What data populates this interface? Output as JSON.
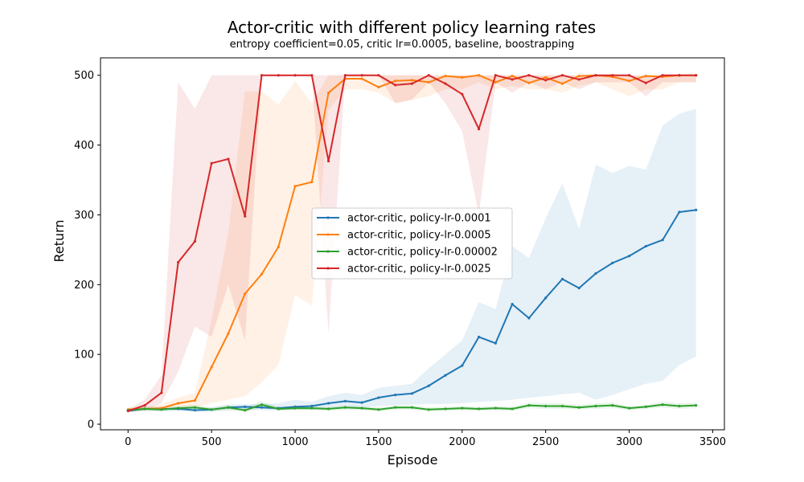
{
  "chart_data": {
    "type": "line",
    "title": "Actor-critic with different policy learning rates",
    "subtitle": "entropy coefficient=0.05, critic lr=0.0005, baseline, boostrapping",
    "xlabel": "Episode",
    "ylabel": "Return",
    "xlim": [
      -165,
      3570
    ],
    "ylim": [
      -8,
      525
    ],
    "xticks": [
      0,
      500,
      1000,
      1500,
      2000,
      2500,
      3000,
      3500
    ],
    "yticks": [
      0,
      100,
      200,
      300,
      400,
      500
    ],
    "grid": false,
    "legend_position": "center",
    "x": [
      0,
      100,
      200,
      300,
      400,
      500,
      600,
      700,
      800,
      900,
      1000,
      1100,
      1200,
      1300,
      1400,
      1500,
      1600,
      1700,
      1800,
      1900,
      2000,
      2100,
      2200,
      2300,
      2400,
      2500,
      2600,
      2700,
      2800,
      2900,
      3000,
      3100,
      3200,
      3300,
      3400
    ],
    "series": [
      {
        "name": "actor-critic, policy-lr-0.0001",
        "color": "#1f77b4",
        "values": [
          19,
          22,
          22,
          22,
          20,
          21,
          24,
          25,
          24,
          23,
          25,
          26,
          30,
          33,
          31,
          38,
          42,
          44,
          55,
          70,
          84,
          125,
          116,
          172,
          152,
          181,
          208,
          195,
          216,
          231,
          241,
          255,
          264,
          304,
          307
        ],
        "lower": [
          17,
          19,
          19,
          19,
          18,
          18,
          20,
          21,
          20,
          20,
          21,
          21,
          23,
          24,
          24,
          26,
          27,
          28,
          29,
          29,
          30,
          32,
          33,
          35,
          38,
          40,
          43,
          45,
          35,
          42,
          50,
          58,
          62,
          85,
          97
        ],
        "upper": [
          22,
          25,
          25,
          25,
          24,
          24,
          28,
          29,
          29,
          30,
          35,
          32,
          40,
          45,
          42,
          52,
          55,
          58,
          80,
          100,
          120,
          175,
          165,
          255,
          238,
          295,
          345,
          280,
          372,
          360,
          370,
          365,
          428,
          445,
          452
        ]
      },
      {
        "name": "actor-critic, policy-lr-0.0005",
        "color": "#ff7f0e",
        "values": [
          21,
          22,
          23,
          30,
          34,
          82,
          130,
          187,
          215,
          254,
          341,
          347,
          475,
          495,
          495,
          483,
          492,
          493,
          490,
          499,
          497,
          500,
          490,
          499,
          489,
          497,
          488,
          499,
          500,
          498,
          492,
          499,
          498,
          500,
          500
        ],
        "lower": [
          19,
          20,
          20,
          22,
          24,
          30,
          35,
          40,
          60,
          85,
          185,
          170,
          450,
          480,
          480,
          475,
          460,
          465,
          470,
          480,
          480,
          490,
          480,
          485,
          480,
          480,
          475,
          485,
          490,
          480,
          470,
          480,
          480,
          490,
          490
        ],
        "upper": [
          24,
          25,
          28,
          38,
          45,
          150,
          275,
          477,
          477,
          458,
          492,
          460,
          500,
          500,
          500,
          500,
          500,
          500,
          500,
          500,
          500,
          500,
          500,
          500,
          500,
          500,
          500,
          500,
          500,
          500,
          500,
          500,
          500,
          500,
          500
        ]
      },
      {
        "name": "actor-critic, policy-lr-0.00002",
        "color": "#2ca02c",
        "values": [
          20,
          22,
          21,
          23,
          24,
          21,
          24,
          20,
          28,
          22,
          23,
          23,
          22,
          24,
          23,
          21,
          24,
          24,
          21,
          22,
          23,
          22,
          23,
          22,
          27,
          26,
          26,
          24,
          26,
          27,
          23,
          25,
          28,
          26,
          27
        ],
        "lower": [
          18,
          19,
          18,
          20,
          20,
          18,
          20,
          17,
          23,
          19,
          20,
          20,
          19,
          21,
          20,
          18,
          21,
          21,
          18,
          19,
          20,
          19,
          20,
          19,
          23,
          22,
          22,
          21,
          22,
          23,
          20,
          22,
          24,
          22,
          23
        ],
        "upper": [
          23,
          25,
          24,
          26,
          28,
          24,
          28,
          24,
          33,
          25,
          26,
          26,
          25,
          27,
          26,
          24,
          27,
          27,
          24,
          25,
          26,
          25,
          26,
          25,
          31,
          30,
          30,
          28,
          30,
          31,
          26,
          28,
          32,
          30,
          31
        ]
      },
      {
        "name": "actor-critic, policy-lr-0.0025",
        "color": "#d62728",
        "values": [
          19,
          27,
          45,
          232,
          262,
          374,
          380,
          298,
          500,
          500,
          500,
          500,
          377,
          500,
          500,
          500,
          486,
          488,
          500,
          488,
          473,
          423,
          500,
          494,
          500,
          493,
          500,
          494,
          500,
          500,
          500,
          489,
          500,
          500,
          500
        ],
        "lower": [
          17,
          20,
          30,
          75,
          140,
          125,
          200,
          120,
          500,
          500,
          500,
          500,
          130,
          500,
          500,
          500,
          460,
          465,
          490,
          460,
          420,
          300,
          490,
          475,
          490,
          480,
          490,
          480,
          490,
          490,
          490,
          470,
          490,
          490,
          490
        ],
        "upper": [
          22,
          35,
          70,
          490,
          452,
          500,
          500,
          500,
          500,
          500,
          500,
          500,
          500,
          500,
          500,
          500,
          500,
          500,
          500,
          500,
          500,
          500,
          500,
          500,
          500,
          500,
          500,
          500,
          500,
          500,
          500,
          500,
          500,
          500,
          500
        ]
      }
    ]
  }
}
